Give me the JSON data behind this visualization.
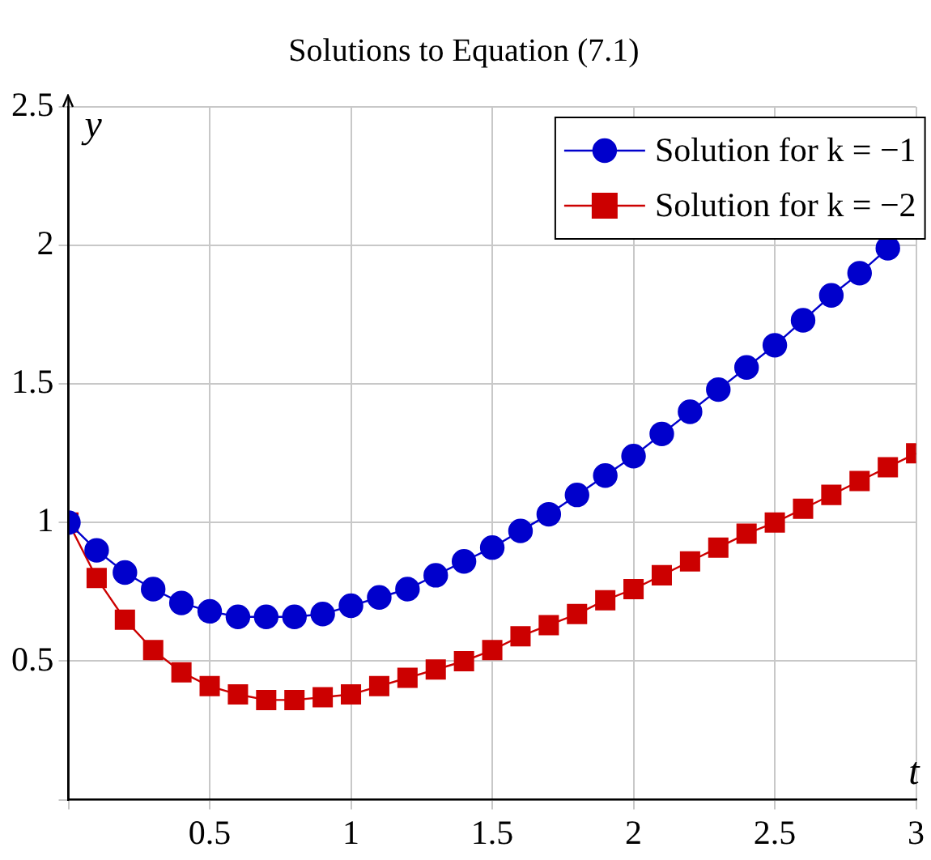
{
  "chart_data": {
    "type": "line",
    "title": "Solutions to Equation (7.1)",
    "xlabel": "t",
    "ylabel": "y",
    "x": [
      0,
      0.1,
      0.2,
      0.3,
      0.4,
      0.5,
      0.6,
      0.7,
      0.8,
      0.9,
      1,
      1.1,
      1.2,
      1.3,
      1.4,
      1.5,
      1.6,
      1.7,
      1.8,
      1.9,
      2,
      2.1,
      2.2,
      2.3,
      2.4,
      2.5,
      2.6,
      2.7,
      2.8,
      2.9,
      3
    ],
    "series": [
      {
        "name": "Solution for k = −1",
        "color": "#0000cc",
        "marker": "circle",
        "values": [
          1,
          0.9,
          0.82,
          0.76,
          0.71,
          0.68,
          0.66,
          0.66,
          0.66,
          0.67,
          0.7,
          0.73,
          0.76,
          0.81,
          0.86,
          0.91,
          0.97,
          1.03,
          1.1,
          1.17,
          1.24,
          1.32,
          1.4,
          1.48,
          1.56,
          1.64,
          1.73,
          1.82,
          1.9,
          1.99,
          null
        ]
      },
      {
        "name": "Solution for k = −2",
        "color": "#cc0000",
        "marker": "square",
        "values": [
          1,
          0.8,
          0.65,
          0.54,
          0.46,
          0.41,
          0.38,
          0.36,
          0.36,
          0.37,
          0.38,
          0.41,
          0.44,
          0.47,
          0.5,
          0.54,
          0.59,
          0.63,
          0.67,
          0.72,
          0.76,
          0.81,
          0.86,
          0.91,
          0.96,
          1,
          1.05,
          1.1,
          1.15,
          1.2,
          1.25
        ]
      }
    ],
    "xlim": [
      0,
      3
    ],
    "xticks": [
      {
        "value": 0,
        "label": null
      },
      0.5,
      1,
      1.5,
      2,
      2.5,
      3
    ],
    "ylim": [
      0,
      2.5
    ],
    "yticks": [
      {
        "value": 0,
        "label": null
      },
      0.5,
      1,
      1.5,
      2,
      2.5
    ],
    "grid": true,
    "legend": "top right"
  }
}
